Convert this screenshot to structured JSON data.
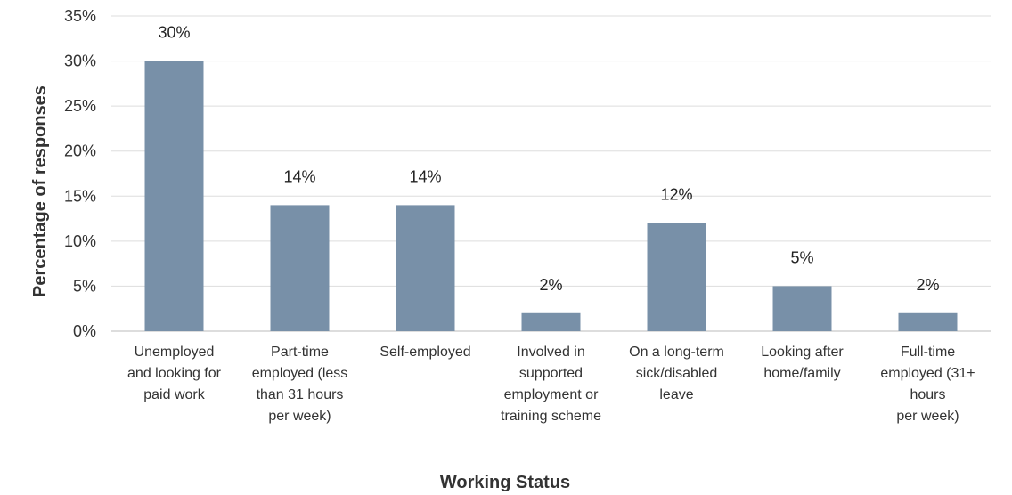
{
  "chart_data": {
    "type": "bar",
    "title": "",
    "xlabel": "Working Status",
    "ylabel": "Percentage of responses",
    "ylim": [
      0,
      35
    ],
    "yticks": [
      0,
      5,
      10,
      15,
      20,
      25,
      30,
      35
    ],
    "ytick_suffix": "%",
    "grid": true,
    "legend": "none",
    "bar_color": "#7890a8",
    "categories": [
      [
        "Unemployed",
        "and looking for",
        "paid work"
      ],
      [
        "Part-time",
        "employed (less",
        "than 31 hours",
        "per week)"
      ],
      [
        "Self-employed"
      ],
      [
        "Involved in",
        "supported",
        "employment or",
        "training scheme"
      ],
      [
        "On a long-term",
        "sick/disabled",
        "leave"
      ],
      [
        "Looking after",
        "home/family"
      ],
      [
        "Full-time",
        "employed (31+",
        "hours",
        "per week)"
      ]
    ],
    "values": [
      30,
      14,
      14,
      2,
      12,
      5,
      2
    ],
    "data_labels": [
      "30%",
      "14%",
      "14%",
      "2%",
      "12%",
      "5%",
      "2%"
    ]
  }
}
